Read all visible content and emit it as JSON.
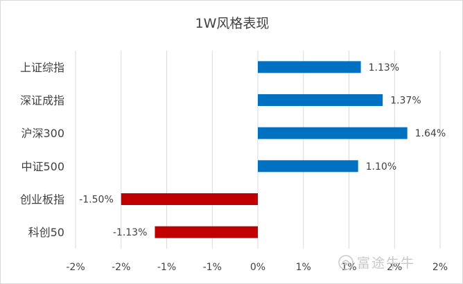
{
  "chart_data": {
    "type": "bar",
    "orientation": "horizontal",
    "title": "1W风格表现",
    "categories": [
      "上证综指",
      "深证成指",
      "沪深300",
      "中证500",
      "创业板指",
      "科创50"
    ],
    "values": [
      1.13,
      1.37,
      1.64,
      1.1,
      -1.5,
      -1.13
    ],
    "data_labels": [
      "1.13%",
      "1.37%",
      "1.64%",
      "1.10%",
      "-1.50%",
      "-1.13%"
    ],
    "x_tick_labels": [
      "-2%",
      "-2%",
      "-1%",
      "-1%",
      "0%",
      "1%",
      "1%",
      "2%",
      "2%"
    ],
    "xlim": [
      -2.0,
      2.0
    ],
    "grid": true,
    "legend": "none",
    "colors": {
      "positive": "#0070c0",
      "negative": "#c00000",
      "grid": "#d9d9d9",
      "text": "#404040"
    }
  },
  "watermark": {
    "text": "富途牛牛",
    "icon": "futu-logo-icon"
  }
}
